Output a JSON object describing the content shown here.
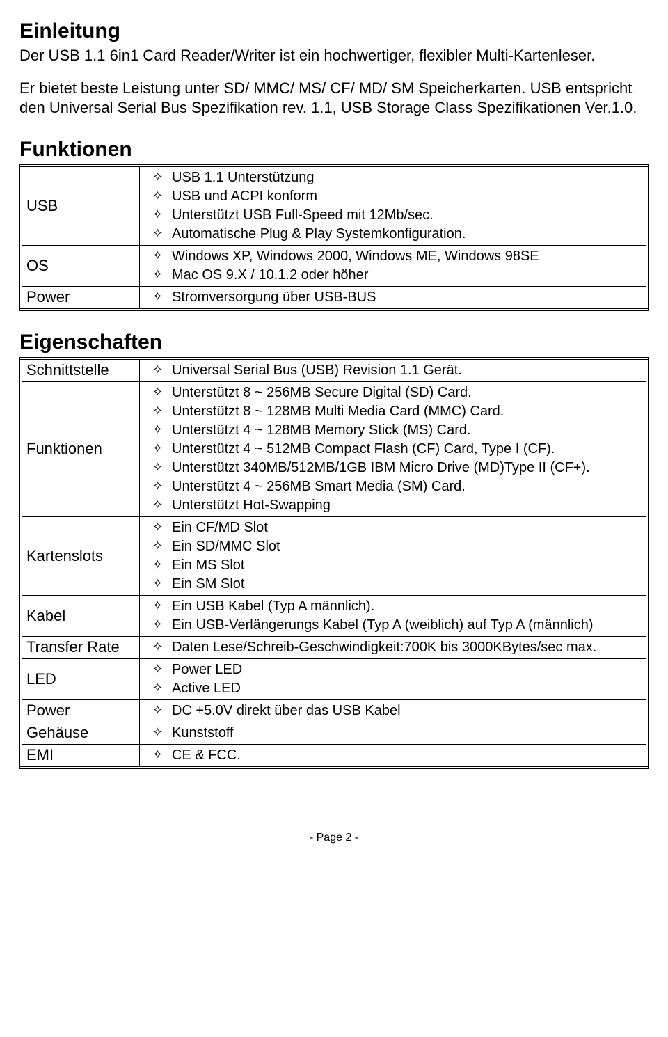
{
  "intro": {
    "heading": "Einleitung",
    "p1": "Der USB 1.1 6in1 Card Reader/Writer ist ein hochwertiger, flexibler Multi-Kartenleser.",
    "p2": "Er bietet beste Leistung unter SD/ MMC/ MS/ CF/ MD/ SM Speicherkarten. USB entspricht den Universal Serial Bus Spezifikation rev. 1.1, USB Storage Class Spezifikationen Ver.1.0."
  },
  "funktionen": {
    "heading": "Funktionen",
    "rows": [
      {
        "label": "USB",
        "items": [
          "USB 1.1 Unterstützung",
          "USB und ACPI konform",
          "Unterstützt USB Full-Speed mit 12Mb/sec.",
          "Automatische Plug & Play Systemkonfiguration."
        ]
      },
      {
        "label": "OS",
        "items": [
          "Windows XP, Windows 2000, Windows ME, Windows 98SE",
          "Mac OS 9.X / 10.1.2 oder höher"
        ]
      },
      {
        "label": "Power",
        "items": [
          "Stromversorgung über USB-BUS"
        ]
      }
    ]
  },
  "eigenschaften": {
    "heading": "Eigenschaften",
    "rows": [
      {
        "label": "Schnittstelle",
        "items": [
          "Universal Serial Bus (USB) Revision 1.1 Gerät."
        ]
      },
      {
        "label": "Funktionen",
        "items": [
          "Unterstützt 8 ~ 256MB Secure Digital (SD) Card.",
          "Unterstützt 8 ~ 128MB Multi Media Card (MMC) Card.",
          "Unterstützt 4 ~ 128MB Memory Stick (MS) Card.",
          "Unterstützt 4 ~ 512MB Compact Flash (CF) Card, Type I (CF).",
          "Unterstützt 340MB/512MB/1GB IBM Micro Drive (MD)Type II (CF+).",
          "Unterstützt 4 ~ 256MB Smart Media (SM) Card.",
          "Unterstützt Hot-Swapping"
        ]
      },
      {
        "label": "Kartenslots",
        "items": [
          "Ein CF/MD Slot",
          "Ein SD/MMC Slot",
          "Ein  MS Slot",
          "Ein SM Slot"
        ]
      },
      {
        "label": "Kabel",
        "items": [
          "Ein USB Kabel (Typ A männlich).",
          "Ein USB-Verlängerungs Kabel (Typ A (weiblich) auf Typ A (männlich)"
        ]
      },
      {
        "label": "Transfer Rate",
        "items": [
          "Daten Lese/Schreib-Geschwindigkeit:700K bis 3000KBytes/sec max."
        ]
      },
      {
        "label": "LED",
        "items": [
          "Power LED",
          "Active LED"
        ]
      },
      {
        "label": "Power",
        "items": [
          "DC +5.0V direkt über das USB Kabel"
        ]
      },
      {
        "label": "Gehäuse",
        "items": [
          "Kunststoff"
        ]
      },
      {
        "label": "EMI",
        "items": [
          "CE & FCC."
        ]
      }
    ]
  },
  "footer": "-   Page 2   -"
}
